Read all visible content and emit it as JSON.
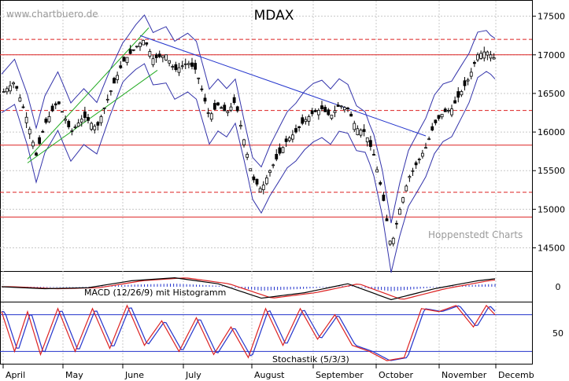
{
  "watermark": "www.chartbuero.de",
  "credit": "Hoppenstedt Charts",
  "chart_data": [
    {
      "type": "candlestick",
      "title": "MDAX",
      "x_ticks": [
        "April",
        "May",
        "June",
        "July",
        "August",
        "September",
        "October",
        "November",
        "Decemb"
      ],
      "y_ticks": [
        14500,
        15000,
        15500,
        16000,
        16500,
        17000,
        17500
      ],
      "ylim": [
        14200,
        17700
      ],
      "grid": true,
      "colors": {
        "candles": "#000000",
        "bands": "#3333aa",
        "channel": "#22aa22",
        "trendline": "#2233cc",
        "levels": "#dd2222"
      },
      "levels": [
        {
          "value": 17200,
          "style": "dashed"
        },
        {
          "value": 17000,
          "style": "solid"
        },
        {
          "value": 16280,
          "style": "dashed"
        },
        {
          "value": 15830,
          "style": "solid"
        },
        {
          "value": 15220,
          "style": "dashed"
        },
        {
          "value": 14900,
          "style": "solid"
        }
      ],
      "close_path": [
        [
          0,
          16500
        ],
        [
          6,
          16650
        ],
        [
          12,
          16150
        ],
        [
          16,
          15700
        ],
        [
          20,
          16100
        ],
        [
          26,
          16400
        ],
        [
          32,
          16000
        ],
        [
          38,
          16200
        ],
        [
          44,
          16050
        ],
        [
          50,
          16500
        ],
        [
          56,
          16900
        ],
        [
          62,
          17100
        ],
        [
          66,
          17200
        ],
        [
          70,
          16950
        ],
        [
          76,
          17000
        ],
        [
          80,
          16800
        ],
        [
          86,
          16900
        ],
        [
          90,
          16800
        ],
        [
          96,
          16200
        ],
        [
          100,
          16350
        ],
        [
          104,
          16250
        ],
        [
          108,
          16400
        ],
        [
          112,
          15900
        ],
        [
          116,
          15400
        ],
        [
          120,
          15250
        ],
        [
          124,
          15500
        ],
        [
          128,
          15700
        ],
        [
          132,
          15900
        ],
        [
          136,
          16000
        ],
        [
          140,
          16150
        ],
        [
          144,
          16250
        ],
        [
          148,
          16300
        ],
        [
          152,
          16200
        ],
        [
          156,
          16350
        ],
        [
          160,
          16300
        ],
        [
          164,
          16050
        ],
        [
          168,
          16000
        ],
        [
          172,
          15700
        ],
        [
          176,
          15200
        ],
        [
          180,
          14500
        ],
        [
          184,
          15000
        ],
        [
          188,
          15400
        ],
        [
          192,
          15600
        ],
        [
          196,
          15800
        ],
        [
          200,
          16100
        ],
        [
          204,
          16250
        ],
        [
          208,
          16300
        ],
        [
          212,
          16500
        ],
        [
          216,
          16700
        ],
        [
          220,
          17000
        ],
        [
          224,
          17050
        ],
        [
          228,
          16950
        ]
      ]
    },
    {
      "type": "line",
      "title": "MACD (12/26/9) mit Histogramm",
      "y_ticks": [
        0
      ],
      "ylim": [
        -300,
        300
      ],
      "grid": true,
      "colors": {
        "macd": "#000000",
        "signal": "#dd2222",
        "histogram": "#2233cc"
      },
      "series": [
        {
          "points": [
            [
              0,
              0
            ],
            [
              20,
              -40
            ],
            [
              40,
              -20
            ],
            [
              60,
              120
            ],
            [
              80,
              180
            ],
            [
              100,
              60
            ],
            [
              120,
              -230
            ],
            [
              140,
              -120
            ],
            [
              160,
              60
            ],
            [
              180,
              -260
            ],
            [
              200,
              -40
            ],
            [
              220,
              120
            ],
            [
              228,
              160
            ]
          ]
        }
      ]
    },
    {
      "type": "line",
      "title": "Stochastik (5/3/3)",
      "y_ticks": [
        50
      ],
      "ylim": [
        0,
        100
      ],
      "grid": true,
      "colors": {
        "k": "#dd2222",
        "d": "#2233cc",
        "bands": "#2233cc"
      },
      "levels": [
        80,
        20
      ],
      "series": [
        {
          "points": [
            [
              0,
              85
            ],
            [
              6,
              20
            ],
            [
              12,
              85
            ],
            [
              18,
              15
            ],
            [
              26,
              90
            ],
            [
              34,
              20
            ],
            [
              42,
              90
            ],
            [
              50,
              25
            ],
            [
              58,
              95
            ],
            [
              66,
              30
            ],
            [
              74,
              70
            ],
            [
              82,
              20
            ],
            [
              90,
              75
            ],
            [
              98,
              15
            ],
            [
              106,
              60
            ],
            [
              114,
              10
            ],
            [
              122,
              90
            ],
            [
              130,
              30
            ],
            [
              138,
              90
            ],
            [
              146,
              40
            ],
            [
              154,
              80
            ],
            [
              162,
              30
            ],
            [
              170,
              20
            ],
            [
              178,
              5
            ],
            [
              186,
              10
            ],
            [
              194,
              90
            ],
            [
              202,
              85
            ],
            [
              210,
              95
            ],
            [
              218,
              60
            ],
            [
              224,
              95
            ],
            [
              228,
              80
            ]
          ]
        }
      ]
    }
  ]
}
